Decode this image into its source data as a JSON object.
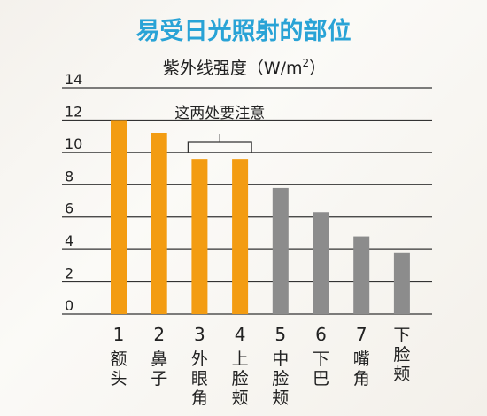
{
  "chart_data": {
    "type": "bar",
    "title": "易受日光照射的部位",
    "ylabel": "紫外线强度（W/m²）",
    "ylabel_parts": {
      "main": "紫外线强度（W/m",
      "sup": "2",
      "close": "）"
    },
    "ylim": [
      0,
      14
    ],
    "yticks": [
      "0",
      "2",
      "4",
      "6",
      "8",
      "10",
      "12",
      "14"
    ],
    "grid": true,
    "categories": [
      {
        "number": "1",
        "name": "额头"
      },
      {
        "number": "2",
        "name": "鼻子"
      },
      {
        "number": "3",
        "name": "外眼角"
      },
      {
        "number": "4",
        "name": "上脸颊"
      },
      {
        "number": "5",
        "name": "中脸颊"
      },
      {
        "number": "6",
        "name": "下巴"
      },
      {
        "number": "7",
        "name": "嘴角"
      },
      {
        "number": "",
        "name": "下脸颊"
      }
    ],
    "values": [
      12.0,
      11.2,
      9.6,
      9.6,
      7.8,
      6.3,
      4.8,
      3.8
    ],
    "highlight_color": "#f39c12",
    "normal_color": "#8c8c8c",
    "highlighted": [
      0,
      1,
      2,
      3
    ],
    "annotation": {
      "text": "这两处要注意",
      "targets": [
        2,
        3
      ]
    }
  }
}
